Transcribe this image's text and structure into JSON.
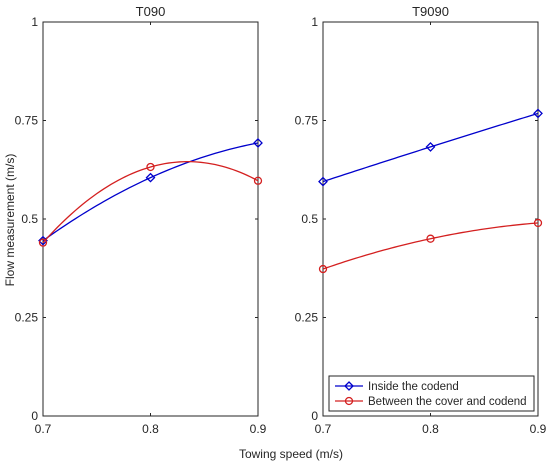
{
  "figure": {
    "xlabel": "Towing speed (m/s)",
    "ylabel": "Flow measurement (m/s)"
  },
  "colors": {
    "inside": "#0000cc",
    "between": "#d42020",
    "axes": "#262626"
  },
  "legend": {
    "placement": "bottom-right of right panel",
    "entries": [
      {
        "label": "Inside the codend",
        "marker": "diamond",
        "color": "#0000cc"
      },
      {
        "label": "Between the cover and codend",
        "marker": "circle",
        "color": "#d42020"
      }
    ]
  },
  "chart_data": [
    {
      "type": "line",
      "title": "T090",
      "x": [
        0.7,
        0.8,
        0.9
      ],
      "xlim": [
        0.7,
        0.9
      ],
      "ylim": [
        0,
        1
      ],
      "xticks": [
        "0.7",
        "0.8",
        "0.9"
      ],
      "yticks": [
        "0",
        "0.25",
        "0.5",
        "0.75",
        "1"
      ],
      "grid": false,
      "smooth": true,
      "series": [
        {
          "name": "Inside the codend",
          "values": [
            0.445,
            0.605,
            0.693
          ],
          "marker": "diamond",
          "color": "#0000cc"
        },
        {
          "name": "Between the cover and codend",
          "values": [
            0.44,
            0.632,
            0.597
          ],
          "marker": "circle",
          "color": "#d42020"
        }
      ]
    },
    {
      "type": "line",
      "title": "T9090",
      "x": [
        0.7,
        0.8,
        0.9
      ],
      "xlim": [
        0.7,
        0.9
      ],
      "ylim": [
        0,
        1
      ],
      "xticks": [
        "0.7",
        "0.8",
        "0.9"
      ],
      "yticks": [
        "0",
        "0.25",
        "0.5",
        "0.75",
        "1"
      ],
      "grid": false,
      "smooth": true,
      "series": [
        {
          "name": "Inside the codend",
          "values": [
            0.595,
            0.683,
            0.768
          ],
          "marker": "diamond",
          "color": "#0000cc"
        },
        {
          "name": "Between the cover and codend",
          "values": [
            0.373,
            0.45,
            0.49
          ],
          "marker": "circle",
          "color": "#d42020"
        }
      ]
    }
  ]
}
